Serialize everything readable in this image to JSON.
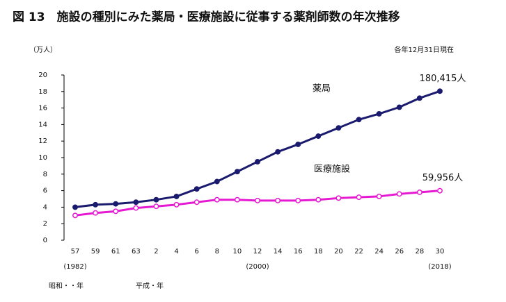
{
  "chart_data": {
    "type": "line",
    "title": "図 13　施設の種別にみた薬局・医療施設に従事する薬剤師数の年次推移",
    "y_label": "（万人）",
    "note": "各年12月31日現在",
    "categories": [
      "57",
      "59",
      "61",
      "63",
      "2",
      "4",
      "6",
      "8",
      "10",
      "12",
      "14",
      "16",
      "18",
      "20",
      "22",
      "24",
      "26",
      "28",
      "30"
    ],
    "annotations": [
      "(1982)",
      "(2000)",
      "(2018)"
    ],
    "era_labels": [
      "昭和・・年",
      "平成・年"
    ],
    "series": [
      {
        "name": "薬局",
        "color": "#1a1a6e",
        "marker": "filled",
        "values": [
          4.0,
          4.3,
          4.4,
          4.6,
          4.9,
          5.3,
          6.2,
          7.1,
          8.3,
          9.5,
          10.7,
          11.6,
          12.6,
          13.6,
          14.6,
          15.3,
          16.1,
          17.2,
          18.0415
        ],
        "value_labels": [
          null,
          null,
          null,
          null,
          null,
          null,
          null,
          null,
          null,
          null,
          null,
          null,
          null,
          null,
          null,
          null,
          null,
          null,
          "180,415人"
        ]
      },
      {
        "name": "医療施設",
        "color": "#e619d2",
        "marker": "open",
        "values": [
          3.0,
          3.3,
          3.5,
          3.9,
          4.1,
          4.3,
          4.6,
          4.9,
          4.9,
          4.8,
          4.8,
          4.8,
          4.9,
          5.1,
          5.2,
          5.3,
          5.6,
          5.8,
          5.9956
        ],
        "value_labels": [
          null,
          null,
          null,
          null,
          null,
          null,
          null,
          null,
          null,
          null,
          null,
          null,
          null,
          null,
          null,
          null,
          null,
          null,
          "59,956人"
        ]
      }
    ],
    "ylim": [
      0,
      20
    ],
    "yticks": [
      0,
      2,
      4,
      6,
      8,
      10,
      12,
      14,
      16,
      18,
      20
    ]
  }
}
